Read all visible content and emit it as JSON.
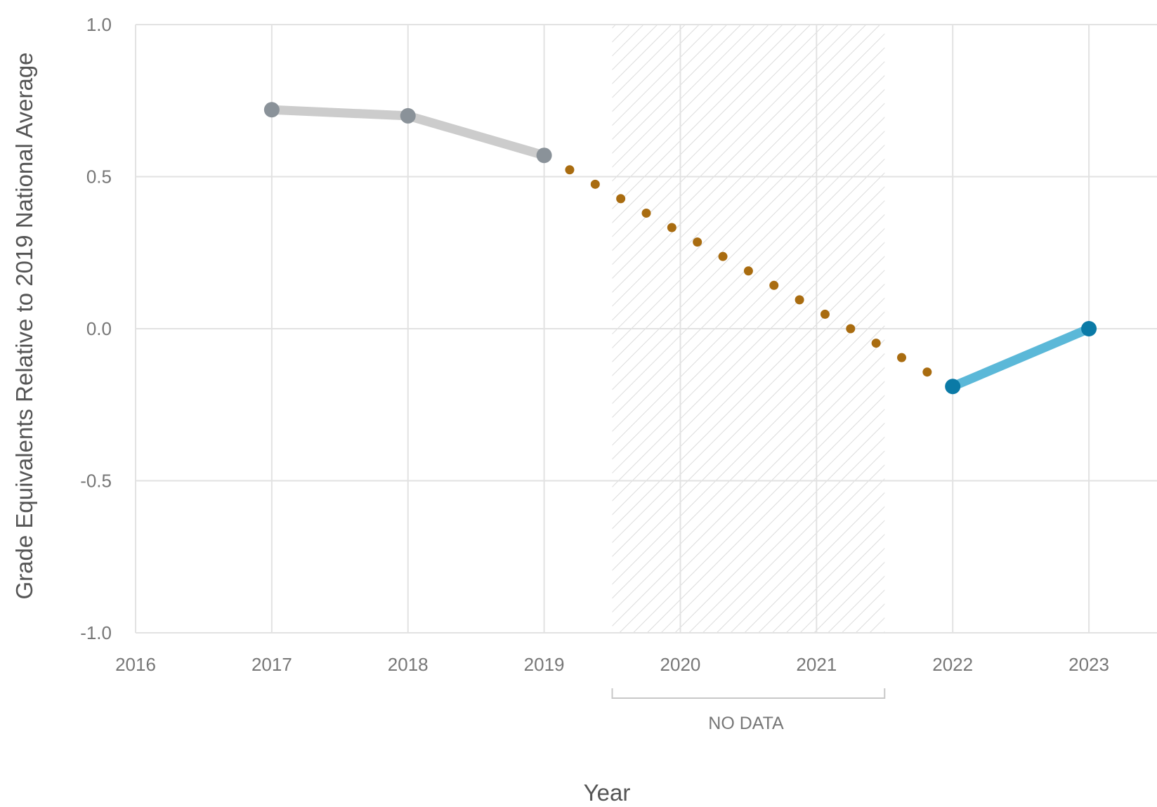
{
  "chart_data": {
    "type": "line",
    "xlabel": "Year",
    "ylabel": "Grade Equivalents Relative to 2019 National Average",
    "xlim": [
      2016,
      2023.5
    ],
    "ylim": [
      -1.0,
      1.0
    ],
    "x_ticks": [
      "2016",
      "2017",
      "2018",
      "2019",
      "2020",
      "2021",
      "2022",
      "2023"
    ],
    "y_ticks": [
      "1.0",
      "0.5",
      "0.0",
      "-0.5",
      "-1.0"
    ],
    "grid": true,
    "series": [
      {
        "x": [
          2017,
          2018,
          2019
        ],
        "values": [
          0.72,
          0.7,
          0.57
        ],
        "line_color": "#cccccc",
        "marker_color": "#8a9299",
        "style": "solid"
      },
      {
        "x": [
          2019,
          2022
        ],
        "values": [
          0.57,
          -0.19
        ],
        "marker_color": "#a96c10",
        "style": "dotted"
      },
      {
        "x": [
          2022,
          2023
        ],
        "values": [
          -0.19,
          0.0
        ],
        "line_color": "#5bb8d8",
        "marker_color": "#0b7aa6",
        "style": "solid"
      }
    ],
    "no_data_range": [
      2019.5,
      2021.5
    ],
    "no_data_label": "NO DATA"
  }
}
